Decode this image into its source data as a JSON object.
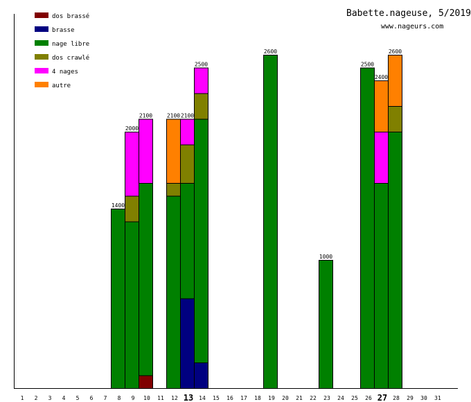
{
  "chart_data": {
    "type": "bar",
    "stacked": true,
    "title": "Babette.nageuse, 5/2019",
    "subtitle": "www.nageurs.com",
    "ylim": [
      0,
      2600
    ],
    "grid": false,
    "legend_position": "top-left",
    "categories": [
      "1",
      "2",
      "3",
      "4",
      "5",
      "6",
      "7",
      "8",
      "9",
      "10",
      "11",
      "12",
      "13",
      "14",
      "15",
      "16",
      "17",
      "18",
      "19",
      "20",
      "21",
      "22",
      "23",
      "24",
      "25",
      "26",
      "27",
      "28",
      "29",
      "30",
      "31"
    ],
    "highlighted_categories": [
      "13",
      "27"
    ],
    "series": [
      {
        "name": "dos brassé",
        "color": "#800000",
        "values": [
          0,
          0,
          0,
          0,
          0,
          0,
          0,
          0,
          0,
          100,
          0,
          0,
          0,
          0,
          0,
          0,
          0,
          0,
          0,
          0,
          0,
          0,
          0,
          0,
          0,
          0,
          0,
          0,
          0,
          0,
          0
        ]
      },
      {
        "name": "brasse",
        "color": "#000080",
        "values": [
          0,
          0,
          0,
          0,
          0,
          0,
          0,
          0,
          0,
          0,
          0,
          0,
          700,
          200,
          0,
          0,
          0,
          0,
          0,
          0,
          0,
          0,
          0,
          0,
          0,
          0,
          0,
          0,
          0,
          0,
          0
        ]
      },
      {
        "name": "nage libre",
        "color": "#008000",
        "values": [
          0,
          0,
          0,
          0,
          0,
          0,
          0,
          1400,
          1300,
          1500,
          0,
          1500,
          900,
          1900,
          0,
          0,
          0,
          0,
          2600,
          0,
          0,
          0,
          1000,
          0,
          0,
          2500,
          1600,
          2000,
          0,
          0,
          0
        ]
      },
      {
        "name": "dos crawlé",
        "color": "#808000",
        "values": [
          0,
          0,
          0,
          0,
          0,
          0,
          0,
          0,
          200,
          0,
          0,
          100,
          300,
          200,
          0,
          0,
          0,
          0,
          0,
          0,
          0,
          0,
          0,
          0,
          0,
          0,
          0,
          200,
          0,
          0,
          0
        ]
      },
      {
        "name": "4 nages",
        "color": "#ff00ff",
        "values": [
          0,
          0,
          0,
          0,
          0,
          0,
          0,
          0,
          500,
          500,
          0,
          0,
          200,
          200,
          0,
          0,
          0,
          0,
          0,
          0,
          0,
          0,
          0,
          0,
          0,
          0,
          400,
          0,
          0,
          0,
          0
        ]
      },
      {
        "name": "autre",
        "color": "#ff8000",
        "values": [
          0,
          0,
          0,
          0,
          0,
          0,
          0,
          0,
          0,
          0,
          0,
          500,
          0,
          0,
          0,
          0,
          0,
          0,
          0,
          0,
          0,
          0,
          0,
          0,
          0,
          0,
          400,
          400,
          0,
          0,
          0
        ]
      }
    ],
    "totals": [
      0,
      0,
      0,
      0,
      0,
      0,
      0,
      1400,
      2000,
      2100,
      0,
      2100,
      2100,
      2500,
      0,
      0,
      0,
      0,
      2600,
      0,
      0,
      0,
      1000,
      0,
      0,
      2500,
      2400,
      2600,
      0,
      0,
      0
    ]
  }
}
